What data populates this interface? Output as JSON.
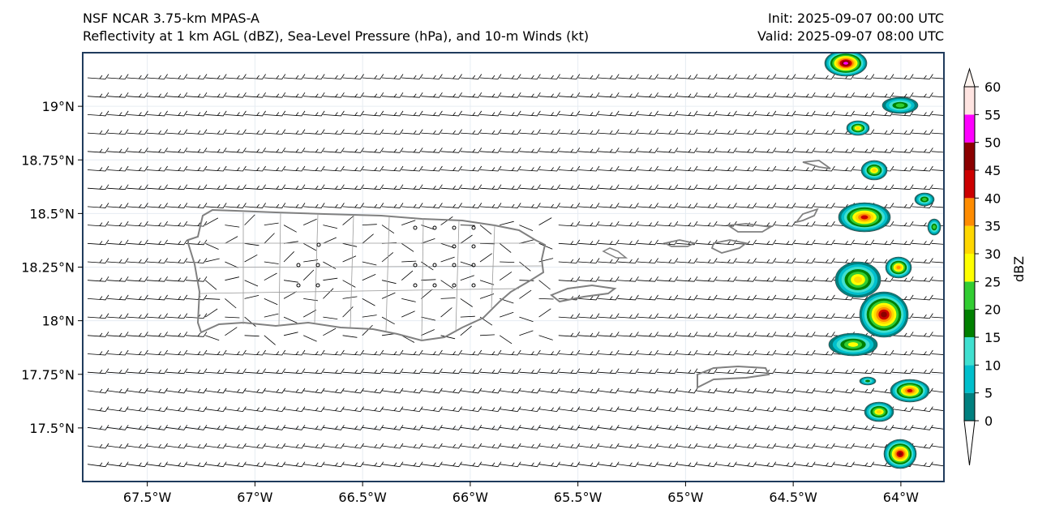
{
  "header": {
    "title_left_1": "NSF NCAR 3.75-km MPAS-A",
    "title_left_2": "Reflectivity at 1 km AGL (dBZ), Sea-Level Pressure (hPa), and 10-m Winds (kt)",
    "title_right_1": "Init: 2025-09-07 00:00 UTC",
    "title_right_2": "Valid: 2025-09-07 08:00 UTC"
  },
  "axes": {
    "lon_range": [
      -67.8,
      -63.8
    ],
    "lat_range": [
      17.25,
      19.25
    ],
    "lon_ticks": [
      {
        "value": -67.5,
        "label": "67.5°W"
      },
      {
        "value": -67.0,
        "label": "67°W"
      },
      {
        "value": -66.5,
        "label": "66.5°W"
      },
      {
        "value": -66.0,
        "label": "66°W"
      },
      {
        "value": -65.5,
        "label": "65.5°W"
      },
      {
        "value": -65.0,
        "label": "65°W"
      },
      {
        "value": -64.5,
        "label": "64.5°W"
      },
      {
        "value": -64.0,
        "label": "64°W"
      }
    ],
    "lat_ticks": [
      {
        "value": 19.0,
        "label": "19°N"
      },
      {
        "value": 18.75,
        "label": "18.75°N"
      },
      {
        "value": 18.5,
        "label": "18.5°N"
      },
      {
        "value": 18.25,
        "label": "18.25°N"
      },
      {
        "value": 18.0,
        "label": "18°N"
      },
      {
        "value": 17.75,
        "label": "17.75°N"
      },
      {
        "value": 17.5,
        "label": "17.5°N"
      }
    ]
  },
  "colorbar": {
    "label": "dBZ",
    "ticks": [
      "0",
      "5",
      "10",
      "15",
      "20",
      "25",
      "30",
      "35",
      "40",
      "45",
      "50",
      "55",
      "60"
    ],
    "levels": [
      0,
      5,
      10,
      15,
      20,
      25,
      30,
      35,
      40,
      45,
      50,
      55,
      60
    ],
    "colors": [
      "#00807f",
      "#00bfcc",
      "#40e0d0",
      "#008000",
      "#32cd32",
      "#ffff00",
      "#ffd700",
      "#ff8c00",
      "#cc0000",
      "#8b0000",
      "#ff00ff",
      "#ffe4e1"
    ]
  },
  "colors": {
    "coast": "#808080",
    "wind_barb": "#000000",
    "frame": "#1f3b5c"
  }
}
